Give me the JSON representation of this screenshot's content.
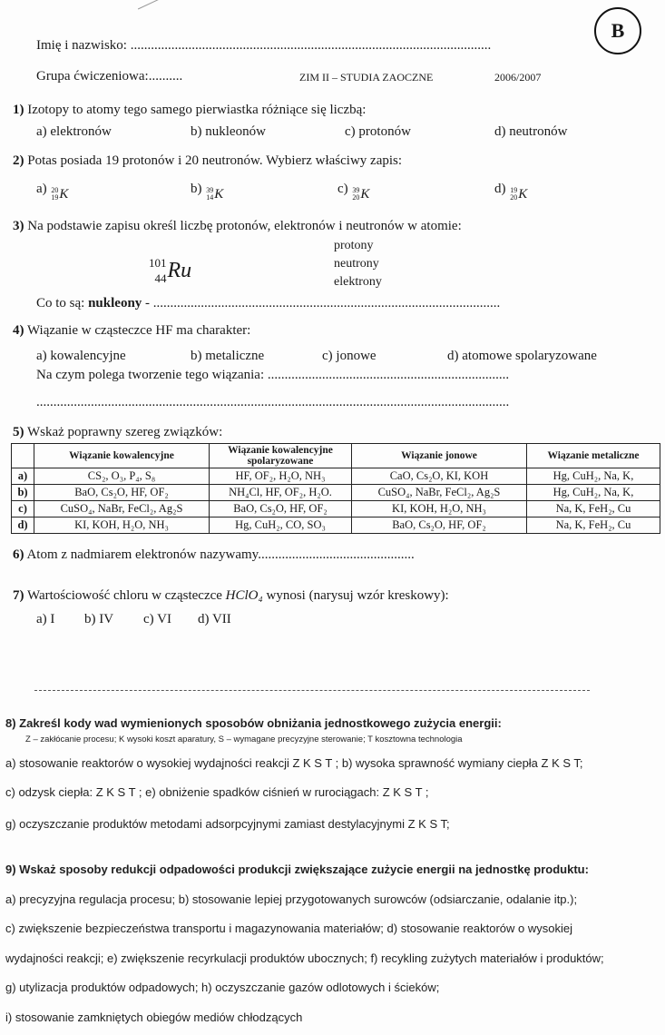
{
  "badge": "B",
  "header": {
    "name_label": "Imię i nazwisko: ..........................................................................................................",
    "group_label": "Grupa ćwiczeniowa:..........",
    "course": "ZIM II – STUDIA ZAOCZNE",
    "year": "2006/2007"
  },
  "q1": {
    "num": "1)",
    "text": "Izotopy to atomy tego samego pierwiastka różniące się liczbą:",
    "options": [
      "a) elektronów",
      "b) nukleonów",
      "c) protonów",
      "d) neutronów"
    ]
  },
  "q2": {
    "num": "2)",
    "text": "Potas posiada 19 protonów i 20 neutronów. Wybierz właściwy zapis:",
    "options": [
      {
        "label": "a)",
        "mass": "20",
        "z": "19",
        "sym": "K"
      },
      {
        "label": "b)",
        "mass": "39",
        "z": "14",
        "sym": "K"
      },
      {
        "label": "c)",
        "mass": "39",
        "z": "20",
        "sym": "K"
      },
      {
        "label": "d)",
        "mass": "19",
        "z": "20",
        "sym": "K"
      }
    ]
  },
  "q3": {
    "num": "3)",
    "text": "Na podstawie zapisu określ liczbę protonów, elektronów i neutronów w atomie:",
    "mass": "101",
    "z": "44",
    "sym": "Ru",
    "fields": [
      "protony",
      "neutrony",
      "elektrony"
    ],
    "nucleon_prefix": "Co to są: ",
    "nucleon_bold": "nukleony",
    "nucleon_dots": " - ......................................................................................................"
  },
  "q4": {
    "num": "4)",
    "text": "Wiązanie w cząsteczce HF ma charakter:",
    "options": [
      "a) kowalencyjne",
      "b) metaliczne",
      "c) jonowe",
      "d) atomowe spolaryzowane"
    ],
    "sub": "Na czym polega tworzenie tego wiązania: .......................................................................",
    "dots": "..........................................................................................................................................."
  },
  "q5": {
    "num": "5)",
    "text": "Wskaż poprawny szereg związków:",
    "headers": [
      "",
      "Wiązanie kowalencyjne",
      "Wiązanie kowalencyjne spolaryzowane",
      "Wiązanie jonowe",
      "Wiązanie metaliczne"
    ],
    "rows": [
      [
        "a)",
        "CS₂, O₃, P₄, S₈",
        "HF, OF₂, H₂O, NH₃",
        "CaO, Cs₂O, KI, KOH",
        "Hg, CuH₂, Na, K,"
      ],
      [
        "b)",
        "BaO, Cs₂O, HF, OF₂",
        "NH₄Cl, HF, OF₂, H₂O.",
        "CuSO₄, NaBr, FeCl₂, Ag₂S",
        "Hg, CuH₂, Na, K,"
      ],
      [
        "c)",
        "CuSO₄, NaBr, FeCl₂, Ag₂S",
        "BaO, Cs₂O, HF, OF₂",
        "KI, KOH, H₂O, NH₃",
        "Na, K, FeH₂, Cu"
      ],
      [
        "d)",
        "KI, KOH, H₂O, NH₃",
        "Hg, CuH₂, CO, SO₃",
        "BaO, Cs₂O, HF, OF₂",
        "Na, K, FeH₂, Cu"
      ]
    ]
  },
  "q6": {
    "num": "6)",
    "text": "Atom z nadmiarem elektronów nazywamy.............................................."
  },
  "q7": {
    "num": "7)",
    "text_a": "Wartościowość chloru w cząsteczce ",
    "formula": "HClO₄",
    "text_b": " wynosi (narysuj wzór kreskowy):",
    "options": [
      "a) I",
      "b) IV",
      "c) VI",
      "d) VII"
    ]
  },
  "q8": {
    "title": "8) Zakreśl kody wad wymienionych sposobów obniżania jednostkowego zużycia energii:",
    "legend": "Z – zakłócanie procesu; K wysoki koszt aparatury, S – wymagane precyzyjne sterowanie; T kosztowna technologia",
    "lines": [
      "a) stosowanie reaktorów o wysokiej wydajności reakcji Z  K  S  T ; b)  wysoka sprawność wymiany ciepła  Z K S T;",
      "c) odzysk ciepła: Z  K  S  T ;   e) obniżenie spadków ciśnień w rurociągach: Z  K  S  T ;",
      "g) oczyszczanie produktów metodami adsorpcyjnymi zamiast destylacyjnymi   Z  K  S  T;"
    ]
  },
  "q9": {
    "title": "9) Wskaż sposoby redukcji odpadowości produkcji zwiększające zużycie energii na jednostkę produktu:",
    "lines": [
      "a) precyzyjna regulacja procesu;  b)  stosowanie lepiej przygotowanych surowców (odsiarczanie, odalanie itp.);",
      "c) zwiększenie bezpieczeństwa transportu i magazynowania materiałów;  d) stosowanie reaktorów o wysokiej",
      "wydajności reakcji; e) zwiększenie recyrkulacji produktów ubocznych; f) recykling zużytych materiałów i produktów;",
      "g)  utylizacja produktów odpadowych;  h) oczyszczanie gazów odlotowych i ścieków;",
      "i) stosowanie zamkniętych obiegów mediów chłodzących"
    ]
  }
}
